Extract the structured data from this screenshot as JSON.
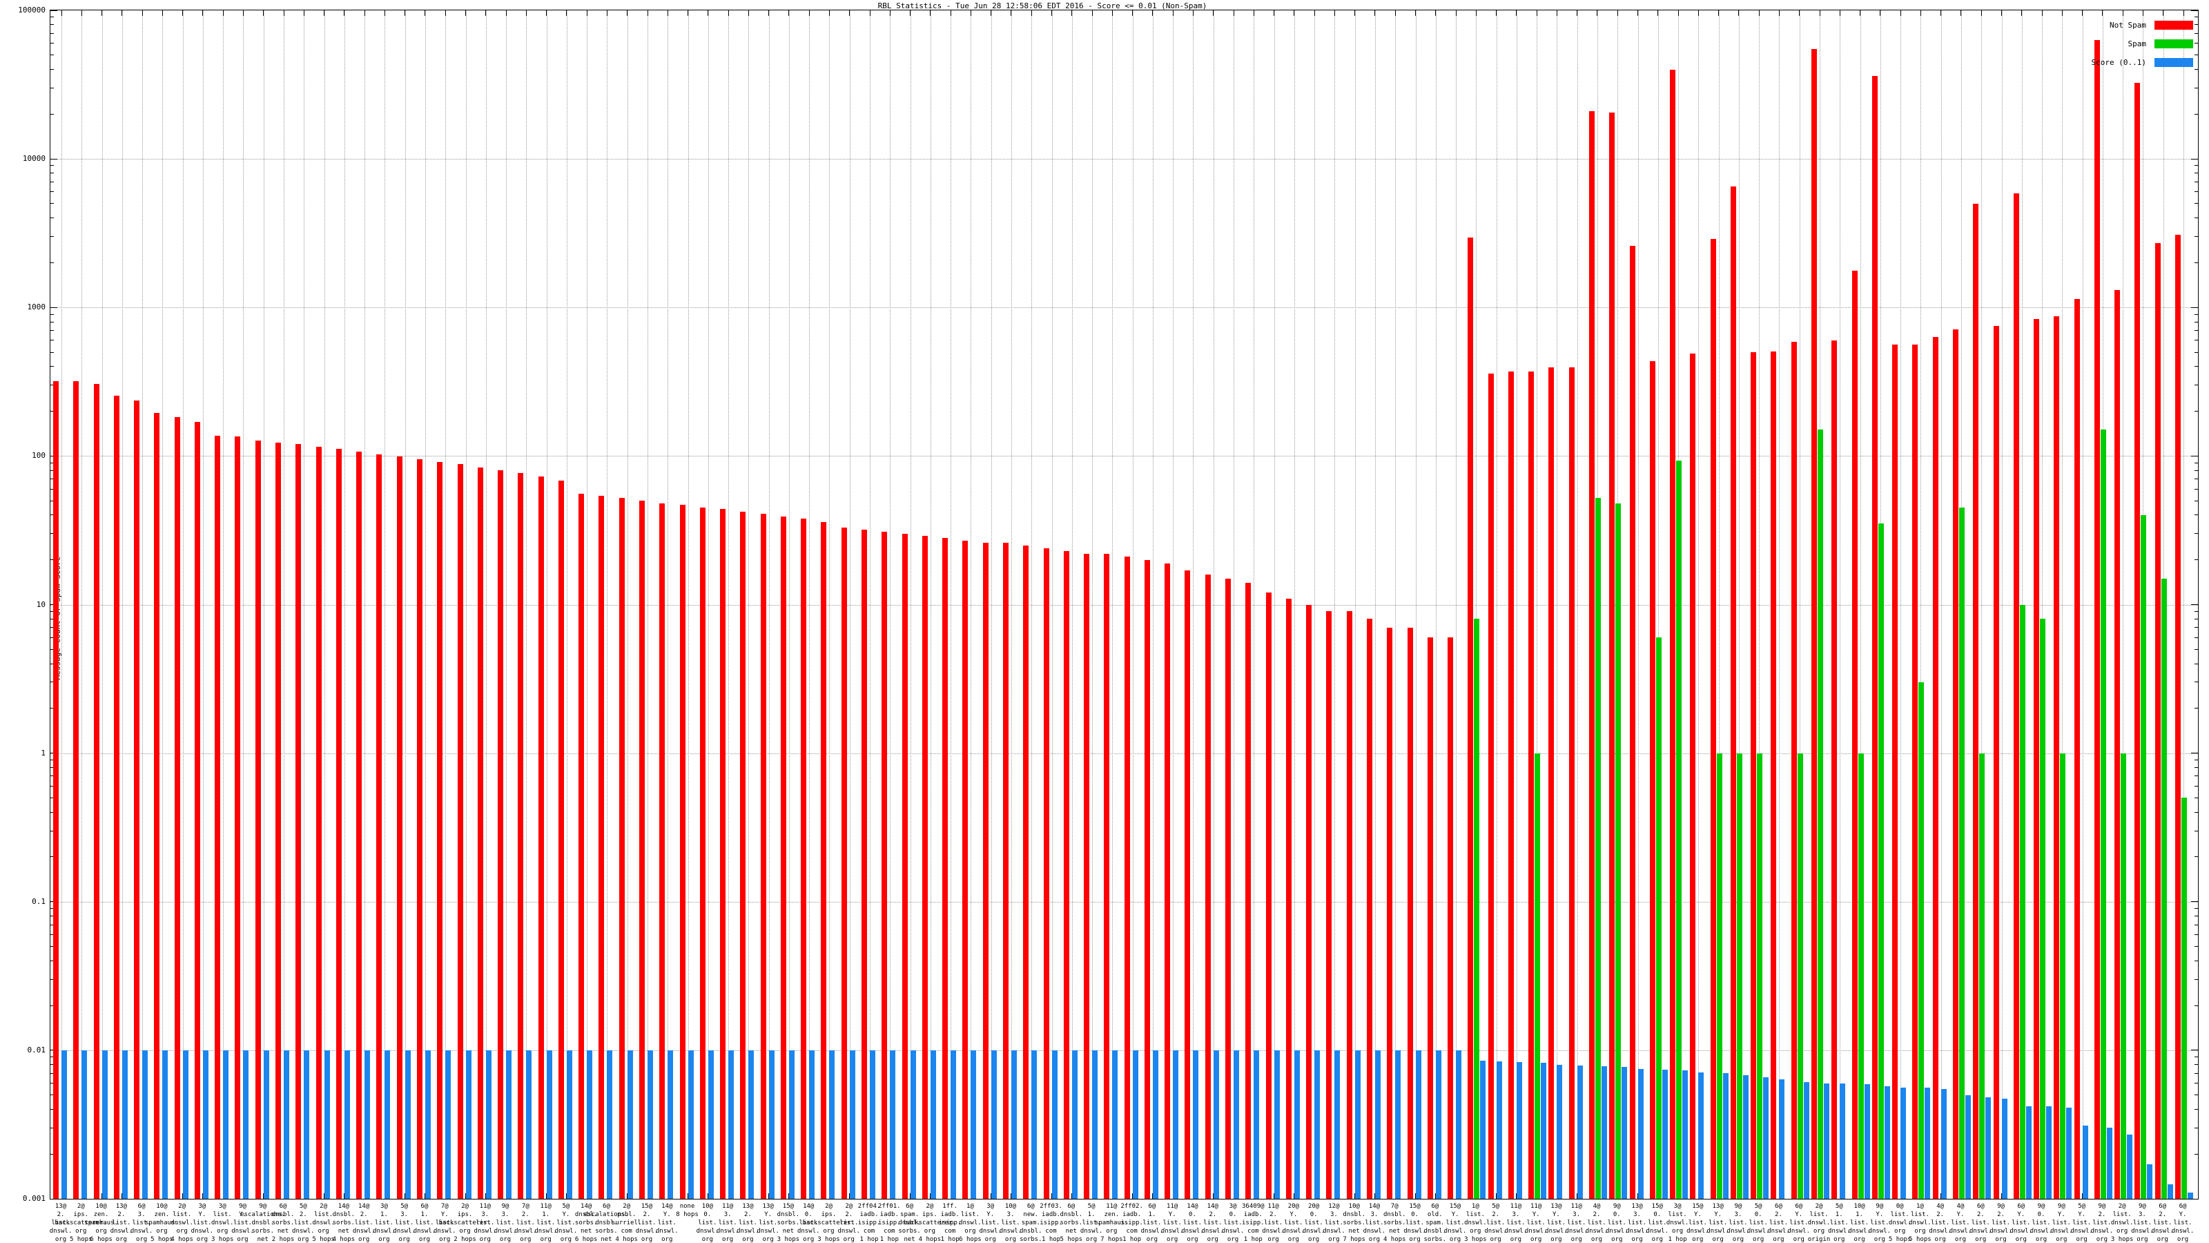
{
  "title": "RBL Statistics - Tue Jun 28 12:58:06 EDT 2016 - Score <= 0.01 (Non-Spam)",
  "y_axis_title": "Message Count or Spam Score",
  "legend": [
    {
      "label": "Not Spam",
      "color": "#ff0000"
    },
    {
      "label": "Spam",
      "color": "#00cc00"
    },
    {
      "label": "Score (0..1)",
      "color": "#1c86ee"
    }
  ],
  "y_ticks": [
    {
      "label": "100000",
      "value": 100000
    },
    {
      "label": "10000",
      "value": 10000
    },
    {
      "label": "1000",
      "value": 1000
    },
    {
      "label": "100",
      "value": 100
    },
    {
      "label": "10",
      "value": 10
    },
    {
      "label": "1",
      "value": 1
    },
    {
      "label": "0.1",
      "value": 0.1
    },
    {
      "label": "0.01",
      "value": 0.01
    },
    {
      "label": "0.001",
      "value": 0.001
    }
  ],
  "chart_data": {
    "type": "bar",
    "title": "RBL Statistics - Tue Jun 28 12:58:06 EDT 2016 - Score <= 0.01 (Non-Spam)",
    "xlabel": "",
    "ylabel": "Message Count or Spam Score",
    "y_scale": "log10",
    "ylim": [
      0.001,
      100000
    ],
    "grid": true,
    "legend_position": "top-right",
    "categories": [
      "13@2.list.dnswl.org 2 hops",
      "2@ips.backscatterer.org 5 hops",
      "10@zen.spamhaus.org 6 hops",
      "13@2.list.dnswl.org 1 hop",
      "6@3.list.dnswl.org 1 hop",
      "10@zen.spamhaus.org 5 hops",
      "2@list.dnswl.org 4 hops",
      "3@Y.list.dnswl.org 3 hops",
      "3@list.dnswl.org 3 hops",
      "9@Y.list.dnswl.org 4 hops",
      "9@escalations.dnsbl.sorbs.net 4 hops",
      "6@dnsbl.sorbs.net 2 hops",
      "5@2.list.dnswl.org 3 hops",
      "2@list.dnswl.org 5 hops",
      "14@dnsbl.sorbs.net 4 hops",
      "14@2.list.dnswl.org 1 hop",
      "3@1.list.dnswl.org 3 hops",
      "5@3.list.dnswl.org 1 hop",
      "6@1.list.dnswl.org 1 hop",
      "7@Y.list.dnswl.org 1 hop",
      "2@ips.backscatterer.org 2 hops",
      "11@3.list.dnswl.org 2 hops",
      "9@3.list.dnswl.org 3 hops",
      "7@2.list.dnswl.org 1 hop",
      "11@1.list.dnswl.org 2 hops",
      "5@Y.list.dnswl.org 6 hops",
      "14@dnsbl.sorbs.net 6 hops",
      "6@escalations.dnsbl.sorbs.net 1 hop",
      "2@psbl.surriel.com 4 hops",
      "15@2.list.dnswl.org origin",
      "14@Y.list.dnswl.org 2 hops",
      "none 8 hops",
      "10@0.list.dnswl.org 5 hops",
      "11@3.list.dnswl.org 3 hops",
      "13@2.list.dnswl.org 3 hops",
      "13@Y.list.dnswl.org 3 hops",
      "15@dnsbl.sorbs.net 3 hops",
      "14@0.list.dnswl.org 1 hop",
      "2@ips.backscatterer.org 3 hops",
      "2@2.list.dnswl.org 1 hop",
      "2ff04.iadb.isipp.com 1 hop",
      "2ff01.iadb.isipp.com 1 hop",
      "6@spam.dnsbl.sorbs.net 6 hops",
      "2@ips.backscatterer.org 4 hops",
      "1ff.iadb.isipp.com 1 hop",
      "1@list.dnswl.org 6 hops",
      "3@Y.list.dnswl.org 5 hops",
      "10@3.list.dnswl.org 1 hop",
      "6@new.spam.dnsbl.sorbs.net 5 hops",
      "2ff03.iadb.isipp.com 1 hop",
      "6@dnsbl.sorbs.net 5 hops",
      "5@1.list.dnswl.org 6 hops",
      "11@zen.spamhaus.org 7 hops",
      "2ff02.iadb.isipp.com 1 hop",
      "6@1.list.dnswl.org 2 hops",
      "11@Y.list.dnswl.org 4 hops",
      "14@0.list.dnswl.org 2 hops",
      "14@2.list.dnswl.org 2 hops",
      "3@0.list.dnswl.org 3 hops",
      "36409@iadb.isipp.com 1 hop",
      "11@2.list.dnswl.org 4 hops",
      "20@Y.list.dnswl.org 1 hop",
      "20@0.list.dnswl.org 1 hop",
      "12@3.list.dnswl.org 1 hop",
      "10@dnsbl.sorbs.net 7 hops",
      "14@3.list.dnswl.org 1 hop",
      "7@dnsbl.sorbs.net 4 hops",
      "15@0.list.dnswl.org 5 hops",
      "6@old.spam.dnsbl.sorbs.net 6 hops",
      "15@Y.list.dnswl.org 5 hops",
      "1@list.dnswl.org 3 hops",
      "5@2.list.dnswl.org 2 hops",
      "11@3.list.dnswl.org origin",
      "11@Y.list.dnswl.org 3 hops",
      "13@Y.list.dnswl.org 2 hops",
      "11@3.list.dnswl.org 1 hop",
      "4@2.list.dnswl.org origin",
      "9@0.list.dnswl.org origin",
      "13@3.list.dnswl.org 1 hop",
      "15@0.list.dnswl.org 3 hops",
      "3@list.dnswl.org 1 hop",
      "15@Y.list.dnswl.org 3 hops",
      "13@Y.list.dnswl.org 1 hop",
      "9@3.list.dnswl.org 2 hops",
      "5@0.list.dnswl.org 5 hops",
      "6@2.list.dnswl.org 2 hops",
      "6@Y.list.dnswl.org 2 hops",
      "2@list.dnswl.org origin",
      "5@1.list.dnswl.org 5 hops",
      "10@1.list.dnswl.org 2 hops",
      "9@Y.list.dnswl.org 1 hop",
      "0@list.dnswl.org 5 hops",
      "1@list.dnswl.org 5 hops",
      "4@2.list.dnswl.org 2 hops",
      "4@Y.list.dnswl.org 2 hops",
      "6@2.list.dnswl.org origin",
      "9@2.list.dnswl.org 3 hops",
      "6@Y.list.dnswl.org origin",
      "9@0.list.dnswl.org 1 hop",
      "9@Y.list.dnswl.org 3 hops",
      "5@Y.list.dnswl.org 5 hops",
      "9@2.list.dnswl.org origin",
      "2@list.dnswl.org 3 hops",
      "9@3.list.dnswl.org 1 hop",
      "6@2.list.dnswl.org 1 hop",
      "6@Y.list.dnswl.org 1 hop"
    ],
    "series": [
      {
        "name": "Not Spam",
        "color": "#ff0000",
        "values": [
          320,
          318,
          305,
          256,
          236,
          196,
          183,
          170,
          137,
          135,
          127,
          123,
          120,
          116,
          112,
          107,
          103,
          99,
          95,
          91,
          88,
          84,
          80,
          77,
          73,
          68,
          56,
          54,
          52,
          50,
          48,
          47,
          45,
          44,
          42,
          41,
          39,
          38,
          36,
          33,
          32,
          31,
          30,
          29,
          28,
          27,
          26,
          26,
          25,
          24,
          23,
          22,
          22,
          21,
          20,
          19,
          17,
          16,
          15,
          14,
          12,
          11,
          10,
          9,
          9,
          8,
          7,
          7,
          6,
          6,
          2950,
          360,
          370,
          372,
          395,
          397,
          21000,
          20500,
          2600,
          435,
          40000,
          490,
          2900,
          6500,
          500,
          505,
          590,
          55000,
          600,
          1770,
          36000,
          565,
          565,
          630,
          710,
          5000,
          750,
          5850,
          840,
          870,
          1140,
          63000,
          1310,
          32500,
          2700,
          3100
        ]
      },
      {
        "name": "Spam",
        "color": "#00cc00",
        "values": [
          null,
          null,
          null,
          null,
          null,
          null,
          null,
          null,
          null,
          null,
          null,
          null,
          null,
          null,
          null,
          null,
          null,
          null,
          null,
          null,
          null,
          null,
          null,
          null,
          null,
          null,
          null,
          null,
          null,
          null,
          null,
          null,
          null,
          null,
          null,
          null,
          null,
          null,
          null,
          null,
          null,
          null,
          null,
          null,
          null,
          null,
          null,
          null,
          null,
          null,
          null,
          null,
          null,
          null,
          null,
          null,
          null,
          null,
          null,
          null,
          null,
          null,
          null,
          null,
          null,
          null,
          null,
          null,
          null,
          null,
          8,
          null,
          null,
          1,
          null,
          null,
          52,
          48,
          null,
          6,
          93,
          null,
          1,
          1,
          1,
          null,
          1,
          150,
          null,
          1,
          35,
          null,
          3,
          null,
          45,
          1,
          null,
          10,
          8,
          1,
          null,
          150,
          1,
          40,
          15,
          0.5
        ]
      },
      {
        "name": "Score (0..1)",
        "color": "#1c86ee",
        "values": [
          0.01,
          0.01,
          0.01,
          0.01,
          0.01,
          0.01,
          0.01,
          0.01,
          0.01,
          0.01,
          0.01,
          0.01,
          0.01,
          0.01,
          0.01,
          0.01,
          0.01,
          0.01,
          0.01,
          0.01,
          0.01,
          0.01,
          0.01,
          0.01,
          0.01,
          0.01,
          0.01,
          0.01,
          0.01,
          0.01,
          0.01,
          0.01,
          0.01,
          0.01,
          0.01,
          0.01,
          0.01,
          0.01,
          0.01,
          0.01,
          0.01,
          0.01,
          0.01,
          0.01,
          0.01,
          0.01,
          0.01,
          0.01,
          0.01,
          0.01,
          0.01,
          0.01,
          0.01,
          0.01,
          0.01,
          0.01,
          0.01,
          0.01,
          0.01,
          0.01,
          0.01,
          0.01,
          0.01,
          0.01,
          0.01,
          0.01,
          0.01,
          0.01,
          0.01,
          0.01,
          0.0085,
          0.0084,
          0.0083,
          0.0082,
          0.008,
          0.0079,
          0.0078,
          0.0077,
          0.0075,
          0.0074,
          0.0073,
          0.0071,
          0.007,
          0.0068,
          0.0066,
          0.0064,
          0.0061,
          0.006,
          0.006,
          0.0059,
          0.0057,
          0.0056,
          0.0056,
          0.0055,
          0.005,
          0.0048,
          0.0047,
          0.0042,
          0.0042,
          0.0041,
          0.0031,
          0.003,
          0.0027,
          0.0017,
          0.00125,
          0.0011
        ]
      }
    ]
  }
}
